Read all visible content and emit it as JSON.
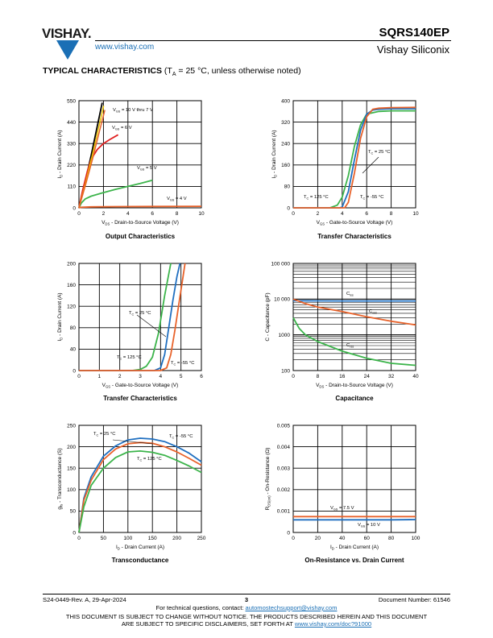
{
  "header": {
    "brand": "VISHAY.",
    "url": "www.vishay.com",
    "part_number": "SQRS140EP",
    "company": "Vishay Siliconix"
  },
  "section": {
    "title": "TYPICAL CHARACTERISTICS",
    "condition_pre": "(T",
    "condition_sub": "A",
    "condition_post": " = 25 °C, unless otherwise noted)"
  },
  "colors": {
    "green": "#3cb44b",
    "blue": "#1f6fc0",
    "orange": "#e8622a",
    "red": "#e02020",
    "yellow": "#e8c000",
    "black": "#000000"
  },
  "charts": [
    {
      "id": "output",
      "caption": "Output Characteristics",
      "xlabel": "V_DS - Drain-to-Source Voltage (V)",
      "ylabel": "I_D - Drain Current (A)",
      "xticks": [
        "0",
        "2",
        "4",
        "6",
        "8",
        "10"
      ],
      "yticks": [
        "0",
        "110",
        "220",
        "330",
        "440",
        "550"
      ],
      "annotations": [
        "V_GS = 10 V thru 7 V",
        "V_GS = 6 V",
        "V_GS = 5 V",
        "V_GS = 4 V"
      ]
    },
    {
      "id": "transfer1",
      "caption": "Transfer Characteristics",
      "xlabel": "V_GS - Gate-to-Source Voltage (V)",
      "ylabel": "I_D - Drain Current (A)",
      "xticks": [
        "0",
        "2",
        "4",
        "6",
        "8",
        "10"
      ],
      "yticks": [
        "0",
        "80",
        "160",
        "240",
        "320",
        "400"
      ],
      "annotations": [
        "T_C = 25 °C",
        "T_C = 125 °C",
        "T_C = -55 °C"
      ]
    },
    {
      "id": "transfer2",
      "caption": "Transfer Characteristics",
      "xlabel": "V_GS - Gate-to-Source Voltage (V)",
      "ylabel": "I_D - Drain Current (A)",
      "xticks": [
        "0",
        "1",
        "2",
        "3",
        "4",
        "5",
        "6"
      ],
      "yticks": [
        "0",
        "40",
        "80",
        "120",
        "160",
        "200"
      ],
      "annotations": [
        "T_C = 25 °C",
        "T_C = 125 °C",
        "T_C = -55 °C"
      ]
    },
    {
      "id": "capacitance",
      "caption": "Capacitance",
      "xlabel": "V_DS - Drain-to-Source Voltage (V)",
      "ylabel": "C - Capacitance (pF)",
      "xticks": [
        "0",
        "8",
        "16",
        "24",
        "32",
        "40"
      ],
      "yticks": [
        "100",
        "1000",
        "10 000",
        "100 000"
      ],
      "annotations": [
        "C_iss",
        "C_oss",
        "C_rss"
      ]
    },
    {
      "id": "transconductance",
      "caption": "Transconductance",
      "xlabel": "I_D - Drain Current (A)",
      "ylabel": "g_fs - Transconductance (S)",
      "xticks": [
        "0",
        "50",
        "100",
        "150",
        "200",
        "250"
      ],
      "yticks": [
        "0",
        "50",
        "100",
        "150",
        "200",
        "250"
      ],
      "annotations": [
        "T_C = 25 °C",
        "T_C = -55 °C",
        "T_C = 125 °C"
      ]
    },
    {
      "id": "onres",
      "caption": "On-Resistance vs. Drain Current",
      "xlabel": "I_D - Drain Current (A)",
      "ylabel": "R_DS(on) - On-Resistance (Ω)",
      "xticks": [
        "0",
        "20",
        "40",
        "60",
        "80",
        "100"
      ],
      "yticks": [
        "0",
        "0.001",
        "0.002",
        "0.003",
        "0.004",
        "0.005"
      ],
      "annotations": [
        "V_GS = 7.5 V",
        "V_GS = 10 V"
      ]
    }
  ],
  "chart_data": [
    {
      "type": "line",
      "title": "Output Characteristics",
      "xlim": [
        0,
        10
      ],
      "ylim": [
        0,
        550
      ],
      "series": [
        {
          "name": "V_GS = 10 V thru 7 V",
          "x": [
            0,
            0.5,
            1,
            1.5,
            1.9
          ],
          "y": [
            0,
            130,
            270,
            420,
            540
          ]
        },
        {
          "name": "V_GS = 6 V",
          "x": [
            0,
            0.3,
            0.7,
            1,
            1.5,
            2,
            2.5,
            3.2
          ],
          "y": [
            0,
            90,
            190,
            250,
            300,
            330,
            350,
            375
          ]
        },
        {
          "name": "V_GS = 5 V",
          "x": [
            0,
            0.2,
            0.5,
            1,
            2,
            3,
            4,
            5,
            6
          ],
          "y": [
            0,
            25,
            45,
            60,
            78,
            95,
            110,
            125,
            142
          ]
        },
        {
          "name": "V_GS = 4 V",
          "x": [
            0,
            0.2,
            1,
            3,
            6,
            10
          ],
          "y": [
            0,
            3,
            5,
            6,
            7,
            8
          ]
        }
      ]
    },
    {
      "type": "line",
      "title": "Transfer Characteristics",
      "xlim": [
        0,
        10
      ],
      "ylim": [
        0,
        400
      ],
      "series": [
        {
          "name": "T_C = 125 °C",
          "x": [
            0,
            3,
            3.6,
            4,
            4.5,
            5,
            5.5,
            6,
            7,
            8,
            10
          ],
          "y": [
            0,
            0,
            10,
            40,
            120,
            230,
            310,
            350,
            360,
            362,
            362
          ]
        },
        {
          "name": "T_C = 25 °C",
          "x": [
            0,
            3.8,
            4,
            4.5,
            5,
            5.5,
            6,
            6.5,
            7,
            8,
            10
          ],
          "y": [
            0,
            0,
            3,
            60,
            180,
            290,
            350,
            365,
            368,
            370,
            370
          ]
        },
        {
          "name": "T_C = -55 °C",
          "x": [
            0,
            4.2,
            4.5,
            5,
            5.5,
            6,
            6.5,
            7,
            8,
            10
          ],
          "y": [
            0,
            0,
            20,
            130,
            260,
            340,
            368,
            372,
            374,
            375
          ]
        }
      ]
    },
    {
      "type": "line",
      "title": "Transfer Characteristics",
      "xlim": [
        0,
        6
      ],
      "ylim": [
        0,
        200
      ],
      "series": [
        {
          "name": "T_C = 125 °C",
          "x": [
            0,
            2.6,
            3,
            3.3,
            3.6,
            3.9,
            4.2,
            4.5
          ],
          "y": [
            0,
            0,
            2,
            8,
            25,
            70,
            140,
            200
          ]
        },
        {
          "name": "T_C = 25 °C",
          "x": [
            0,
            3.7,
            4,
            4.2,
            4.4,
            4.6,
            4.8,
            4.95
          ],
          "y": [
            0,
            0,
            5,
            30,
            80,
            130,
            175,
            200
          ]
        },
        {
          "name": "T_C = -55 °C",
          "x": [
            0,
            4,
            4.3,
            4.5,
            4.7,
            4.9,
            5.1,
            5.2
          ],
          "y": [
            0,
            0,
            5,
            30,
            75,
            125,
            175,
            200
          ]
        }
      ]
    },
    {
      "type": "line",
      "title": "Capacitance",
      "xlim": [
        0,
        40
      ],
      "ylim": [
        100,
        100000
      ],
      "yscale": "log",
      "series": [
        {
          "name": "C_iss",
          "x": [
            0,
            8,
            16,
            24,
            32,
            40
          ],
          "y": [
            9000,
            8950,
            8900,
            8900,
            8900,
            8900
          ]
        },
        {
          "name": "C_oss",
          "x": [
            0,
            4,
            8,
            16,
            24,
            32,
            40
          ],
          "y": [
            10000,
            7500,
            6000,
            4500,
            3200,
            2400,
            1900
          ]
        },
        {
          "name": "C_rss",
          "x": [
            0,
            2,
            4,
            8,
            16,
            24,
            32,
            40
          ],
          "y": [
            3000,
            1500,
            1000,
            650,
            350,
            220,
            160,
            140
          ]
        }
      ]
    },
    {
      "type": "line",
      "title": "Transconductance",
      "xlim": [
        0,
        250
      ],
      "ylim": [
        0,
        250
      ],
      "series": [
        {
          "name": "T_C = -55 °C",
          "x": [
            0,
            10,
            25,
            50,
            75,
            100,
            125,
            150,
            175,
            200,
            225,
            250
          ],
          "y": [
            0,
            80,
            130,
            178,
            202,
            216,
            220,
            218,
            212,
            200,
            185,
            165
          ]
        },
        {
          "name": "T_C = 25 °C",
          "x": [
            0,
            10,
            25,
            50,
            75,
            100,
            125,
            150,
            175,
            200,
            225,
            250
          ],
          "y": [
            0,
            75,
            122,
            170,
            195,
            207,
            210,
            208,
            200,
            188,
            173,
            157
          ]
        },
        {
          "name": "T_C = 125 °C",
          "x": [
            0,
            10,
            25,
            50,
            75,
            100,
            125,
            150,
            175,
            200,
            225,
            250
          ],
          "y": [
            0,
            60,
            110,
            150,
            175,
            188,
            190,
            187,
            180,
            168,
            155,
            140
          ]
        }
      ]
    },
    {
      "type": "line",
      "title": "On-Resistance vs. Drain Current",
      "xlim": [
        0,
        100
      ],
      "ylim": [
        0,
        0.005
      ],
      "series": [
        {
          "name": "V_GS = 7.5 V",
          "x": [
            0,
            20,
            40,
            60,
            80,
            100
          ],
          "y": [
            0.00074,
            0.00074,
            0.00074,
            0.00074,
            0.00074,
            0.00074
          ]
        },
        {
          "name": "V_GS = 10 V",
          "x": [
            0,
            20,
            40,
            60,
            80,
            100
          ],
          "y": [
            0.00059,
            0.00059,
            0.00059,
            0.00059,
            0.00059,
            0.0006
          ]
        }
      ]
    }
  ],
  "footer": {
    "revision": "S24-0449-Rev. A, 29-Apr-2024",
    "page": "3",
    "doc_number": "Document Number: 61546",
    "support_pre": "For technical questions, contact: ",
    "support_email": "automostechsupport@vishay.com",
    "notice1": "THIS DOCUMENT IS SUBJECT TO CHANGE WITHOUT NOTICE. THE PRODUCTS DESCRIBED HEREIN AND THIS DOCUMENT",
    "notice2_pre": "ARE SUBJECT TO SPECIFIC DISCLAIMERS, SET FORTH AT ",
    "notice2_link": "www.vishay.com/doc?91000"
  }
}
